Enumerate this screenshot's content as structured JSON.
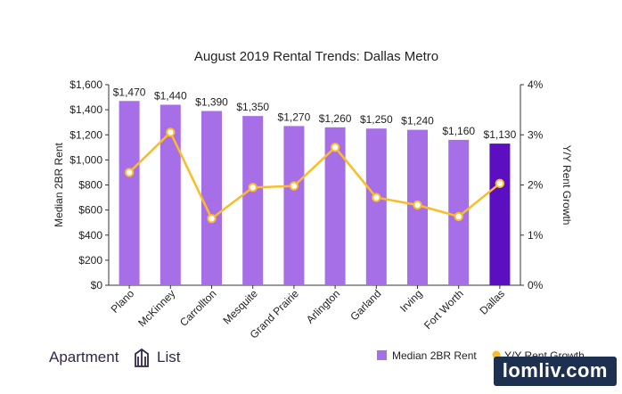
{
  "chart_data": {
    "type": "bar+line",
    "title": "August 2019 Rental Trends: Dallas Metro",
    "categories": [
      "Plano",
      "McKinney",
      "Carrollton",
      "Mesquite",
      "Grand Prairie",
      "Arlington",
      "Garland",
      "Irving",
      "Fort Worth",
      "Dallas"
    ],
    "series": [
      {
        "name": "Median 2BR Rent",
        "type": "bar",
        "axis": "left",
        "values": [
          1470,
          1440,
          1390,
          1350,
          1270,
          1260,
          1250,
          1240,
          1160,
          1130
        ],
        "labels": [
          "$1,470",
          "$1,440",
          "$1,390",
          "$1,350",
          "$1,270",
          "$1,260",
          "$1,250",
          "$1,240",
          "$1,160",
          "$1,130"
        ],
        "color": "#a76fe7",
        "highlight_color": "#5b0fc0",
        "highlight_category": "Dallas"
      },
      {
        "name": "Y/Y Rent Growth",
        "type": "line",
        "axis": "right",
        "values": [
          2.25,
          3.05,
          1.33,
          1.95,
          1.98,
          2.75,
          1.75,
          1.6,
          1.37,
          2.03
        ],
        "color": "#fbbc25"
      }
    ],
    "ylabel": "Median 2BR Rent",
    "ylim": [
      0,
      1600
    ],
    "yticks": [
      "$0",
      "$200",
      "$400",
      "$600",
      "$800",
      "$1,000",
      "$1,200",
      "$1,400",
      "$1,600"
    ],
    "y2label": "Y/Y Rent Growth",
    "y2lim": [
      0,
      4
    ],
    "y2ticks": [
      "0%",
      "1%",
      "2%",
      "3%",
      "4%"
    ],
    "legend_position": "bottom-right",
    "grid": false
  },
  "branding": {
    "logo_text_left": "Apartment",
    "logo_text_right": "List",
    "watermark": "lomliv.com"
  }
}
